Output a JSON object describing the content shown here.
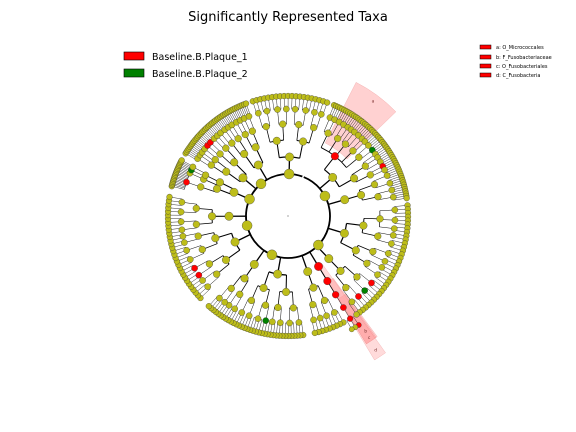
{
  "chart_data": {
    "type": "cladogram",
    "title": "Significantly Represented Taxa",
    "legend": {
      "placement": "upper-left",
      "entries": [
        {
          "name": "Baseline.B.Plaque_1",
          "color": "#ff0000"
        },
        {
          "name": "Baseline.B.Plaque_2",
          "color": "#008000"
        }
      ]
    },
    "clade_legend": {
      "placement": "upper-right",
      "entries": [
        {
          "label": "a: O_Micrococcales",
          "color": "#ff0000"
        },
        {
          "label": "b: F_Fusobacteriaceae",
          "color": "#ff0000"
        },
        {
          "label": "c: O_Fusobacteriales",
          "color": "#ff0000"
        },
        {
          "label": "d: C_Fusobacteria",
          "color": "#ff0000"
        }
      ]
    },
    "highlighted_clades": [
      {
        "label": "a",
        "color": "#ff9999"
      },
      {
        "label": "b",
        "color": "#ff9999"
      },
      {
        "label": "c",
        "color": "#ff9999"
      },
      {
        "label": "d",
        "color": "#ff9999"
      }
    ],
    "node_colors": {
      "default": "#bdbd1a",
      "plaque_1": "#ff0000",
      "plaque_2": "#008000"
    }
  }
}
